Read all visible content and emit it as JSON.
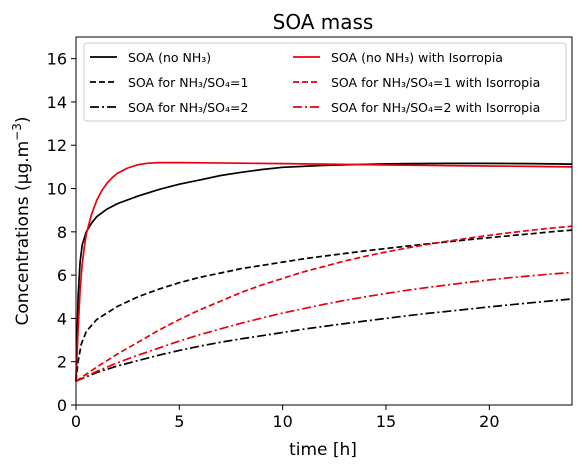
{
  "chart_data": {
    "type": "line",
    "title": "SOA mass",
    "xlabel": "time [h]",
    "ylabel": "Concentrations (μg.m⁻³)",
    "xlim": [
      0,
      24
    ],
    "ylim": [
      0,
      17
    ],
    "xticks": [
      0,
      5,
      10,
      15,
      20
    ],
    "yticks": [
      0,
      2,
      4,
      6,
      8,
      10,
      12,
      14,
      16
    ],
    "grid": false,
    "legend_placement": "top",
    "series": [
      {
        "name": "SOA (no NH₃)",
        "color": "#000000",
        "style": "solid",
        "points": [
          [
            0,
            1.1
          ],
          [
            0.1,
            5.0
          ],
          [
            0.2,
            6.6
          ],
          [
            0.3,
            7.4
          ],
          [
            0.5,
            8.0
          ],
          [
            0.75,
            8.4
          ],
          [
            1,
            8.7
          ],
          [
            1.5,
            9.05
          ],
          [
            2,
            9.3
          ],
          [
            3,
            9.65
          ],
          [
            4,
            9.95
          ],
          [
            5,
            10.2
          ],
          [
            6,
            10.4
          ],
          [
            7,
            10.6
          ],
          [
            8,
            10.75
          ],
          [
            9,
            10.88
          ],
          [
            10,
            10.98
          ],
          [
            12,
            11.07
          ],
          [
            14,
            11.12
          ],
          [
            16,
            11.15
          ],
          [
            18,
            11.16
          ],
          [
            20,
            11.16
          ],
          [
            22,
            11.15
          ],
          [
            24,
            11.13
          ]
        ]
      },
      {
        "name": "SOA for NH₃/SO₄=1",
        "color": "#000000",
        "style": "dashed",
        "points": [
          [
            0,
            1.1
          ],
          [
            0.1,
            2.0
          ],
          [
            0.25,
            2.8
          ],
          [
            0.5,
            3.4
          ],
          [
            1,
            3.95
          ],
          [
            2,
            4.55
          ],
          [
            3,
            5.0
          ],
          [
            4,
            5.35
          ],
          [
            5,
            5.65
          ],
          [
            6,
            5.9
          ],
          [
            7,
            6.1
          ],
          [
            8,
            6.3
          ],
          [
            9,
            6.45
          ],
          [
            10,
            6.6
          ],
          [
            11,
            6.75
          ],
          [
            12,
            6.88
          ],
          [
            13,
            7.0
          ],
          [
            14,
            7.12
          ],
          [
            15,
            7.23
          ],
          [
            16,
            7.34
          ],
          [
            17,
            7.44
          ],
          [
            18,
            7.54
          ],
          [
            19,
            7.64
          ],
          [
            20,
            7.73
          ],
          [
            21,
            7.82
          ],
          [
            22,
            7.91
          ],
          [
            23,
            8.0
          ],
          [
            24,
            8.08
          ]
        ]
      },
      {
        "name": "SOA for NH₃/SO₄=2",
        "color": "#000000",
        "style": "dashdot",
        "points": [
          [
            0,
            1.1
          ],
          [
            1,
            1.5
          ],
          [
            2,
            1.8
          ],
          [
            3,
            2.05
          ],
          [
            4,
            2.3
          ],
          [
            5,
            2.52
          ],
          [
            6,
            2.72
          ],
          [
            7,
            2.9
          ],
          [
            8,
            3.06
          ],
          [
            9,
            3.2
          ],
          [
            10,
            3.35
          ],
          [
            11,
            3.5
          ],
          [
            12,
            3.63
          ],
          [
            13,
            3.76
          ],
          [
            14,
            3.88
          ],
          [
            15,
            4.0
          ],
          [
            16,
            4.12
          ],
          [
            17,
            4.23
          ],
          [
            18,
            4.33
          ],
          [
            19,
            4.43
          ],
          [
            20,
            4.53
          ],
          [
            21,
            4.63
          ],
          [
            22,
            4.72
          ],
          [
            23,
            4.81
          ],
          [
            24,
            4.9
          ]
        ]
      },
      {
        "name": "SOA (no NH₃) with Isorropia",
        "color": "#e8000b",
        "style": "solid",
        "points": [
          [
            0,
            1.1
          ],
          [
            0.1,
            3.5
          ],
          [
            0.2,
            5.3
          ],
          [
            0.3,
            6.5
          ],
          [
            0.4,
            7.3
          ],
          [
            0.5,
            7.9
          ],
          [
            0.75,
            8.8
          ],
          [
            1,
            9.45
          ],
          [
            1.25,
            9.9
          ],
          [
            1.5,
            10.25
          ],
          [
            1.75,
            10.5
          ],
          [
            2,
            10.7
          ],
          [
            2.5,
            10.95
          ],
          [
            3,
            11.1
          ],
          [
            3.5,
            11.17
          ],
          [
            4,
            11.2
          ],
          [
            5,
            11.2
          ],
          [
            6,
            11.19
          ],
          [
            8,
            11.17
          ],
          [
            10,
            11.15
          ],
          [
            12,
            11.13
          ],
          [
            14,
            11.1
          ],
          [
            16,
            11.08
          ],
          [
            18,
            11.06
          ],
          [
            20,
            11.04
          ],
          [
            22,
            11.02
          ],
          [
            24,
            11.0
          ]
        ]
      },
      {
        "name": "SOA for NH₃/SO₄=1 with Isorropia",
        "color": "#e8000b",
        "style": "dashed",
        "points": [
          [
            0,
            1.1
          ],
          [
            1,
            1.75
          ],
          [
            2,
            2.35
          ],
          [
            3,
            2.9
          ],
          [
            4,
            3.45
          ],
          [
            5,
            3.95
          ],
          [
            6,
            4.4
          ],
          [
            7,
            4.8
          ],
          [
            8,
            5.2
          ],
          [
            9,
            5.55
          ],
          [
            10,
            5.85
          ],
          [
            11,
            6.15
          ],
          [
            12,
            6.4
          ],
          [
            13,
            6.65
          ],
          [
            14,
            6.87
          ],
          [
            15,
            7.07
          ],
          [
            16,
            7.25
          ],
          [
            17,
            7.42
          ],
          [
            18,
            7.57
          ],
          [
            19,
            7.71
          ],
          [
            20,
            7.84
          ],
          [
            21,
            7.96
          ],
          [
            22,
            8.07
          ],
          [
            23,
            8.17
          ],
          [
            24,
            8.26
          ]
        ]
      },
      {
        "name": "SOA for NH₃/SO₄=2 with Isorropia",
        "color": "#e8000b",
        "style": "dashdot",
        "points": [
          [
            0,
            1.1
          ],
          [
            1,
            1.55
          ],
          [
            2,
            1.95
          ],
          [
            3,
            2.3
          ],
          [
            4,
            2.63
          ],
          [
            5,
            2.95
          ],
          [
            6,
            3.25
          ],
          [
            7,
            3.52
          ],
          [
            8,
            3.78
          ],
          [
            9,
            4.02
          ],
          [
            10,
            4.25
          ],
          [
            11,
            4.45
          ],
          [
            12,
            4.65
          ],
          [
            13,
            4.83
          ],
          [
            14,
            5.0
          ],
          [
            15,
            5.15
          ],
          [
            16,
            5.3
          ],
          [
            17,
            5.43
          ],
          [
            18,
            5.55
          ],
          [
            19,
            5.67
          ],
          [
            20,
            5.78
          ],
          [
            21,
            5.88
          ],
          [
            22,
            5.97
          ],
          [
            23,
            6.05
          ],
          [
            24,
            6.12
          ]
        ]
      }
    ]
  }
}
